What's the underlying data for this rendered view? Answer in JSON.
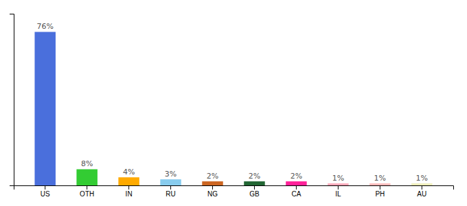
{
  "chart_data": {
    "type": "bar",
    "categories": [
      "US",
      "OTH",
      "IN",
      "RU",
      "NG",
      "GB",
      "CA",
      "IL",
      "PH",
      "AU"
    ],
    "values": [
      76,
      8,
      4,
      3,
      2,
      2,
      2,
      1,
      1,
      1
    ],
    "value_labels": [
      "76%",
      "8%",
      "4%",
      "3%",
      "2%",
      "2%",
      "2%",
      "1%",
      "1%",
      "1%"
    ],
    "colors": [
      "#4a6fdc",
      "#33cc33",
      "#ffaa00",
      "#88ccee",
      "#cc6622",
      "#226633",
      "#ff2299",
      "#ffaabb",
      "#ffbbbb",
      "#eeeebb"
    ],
    "ylim": [
      0,
      85
    ],
    "data_labels": true,
    "tick_labels": "x",
    "grid": false
  }
}
